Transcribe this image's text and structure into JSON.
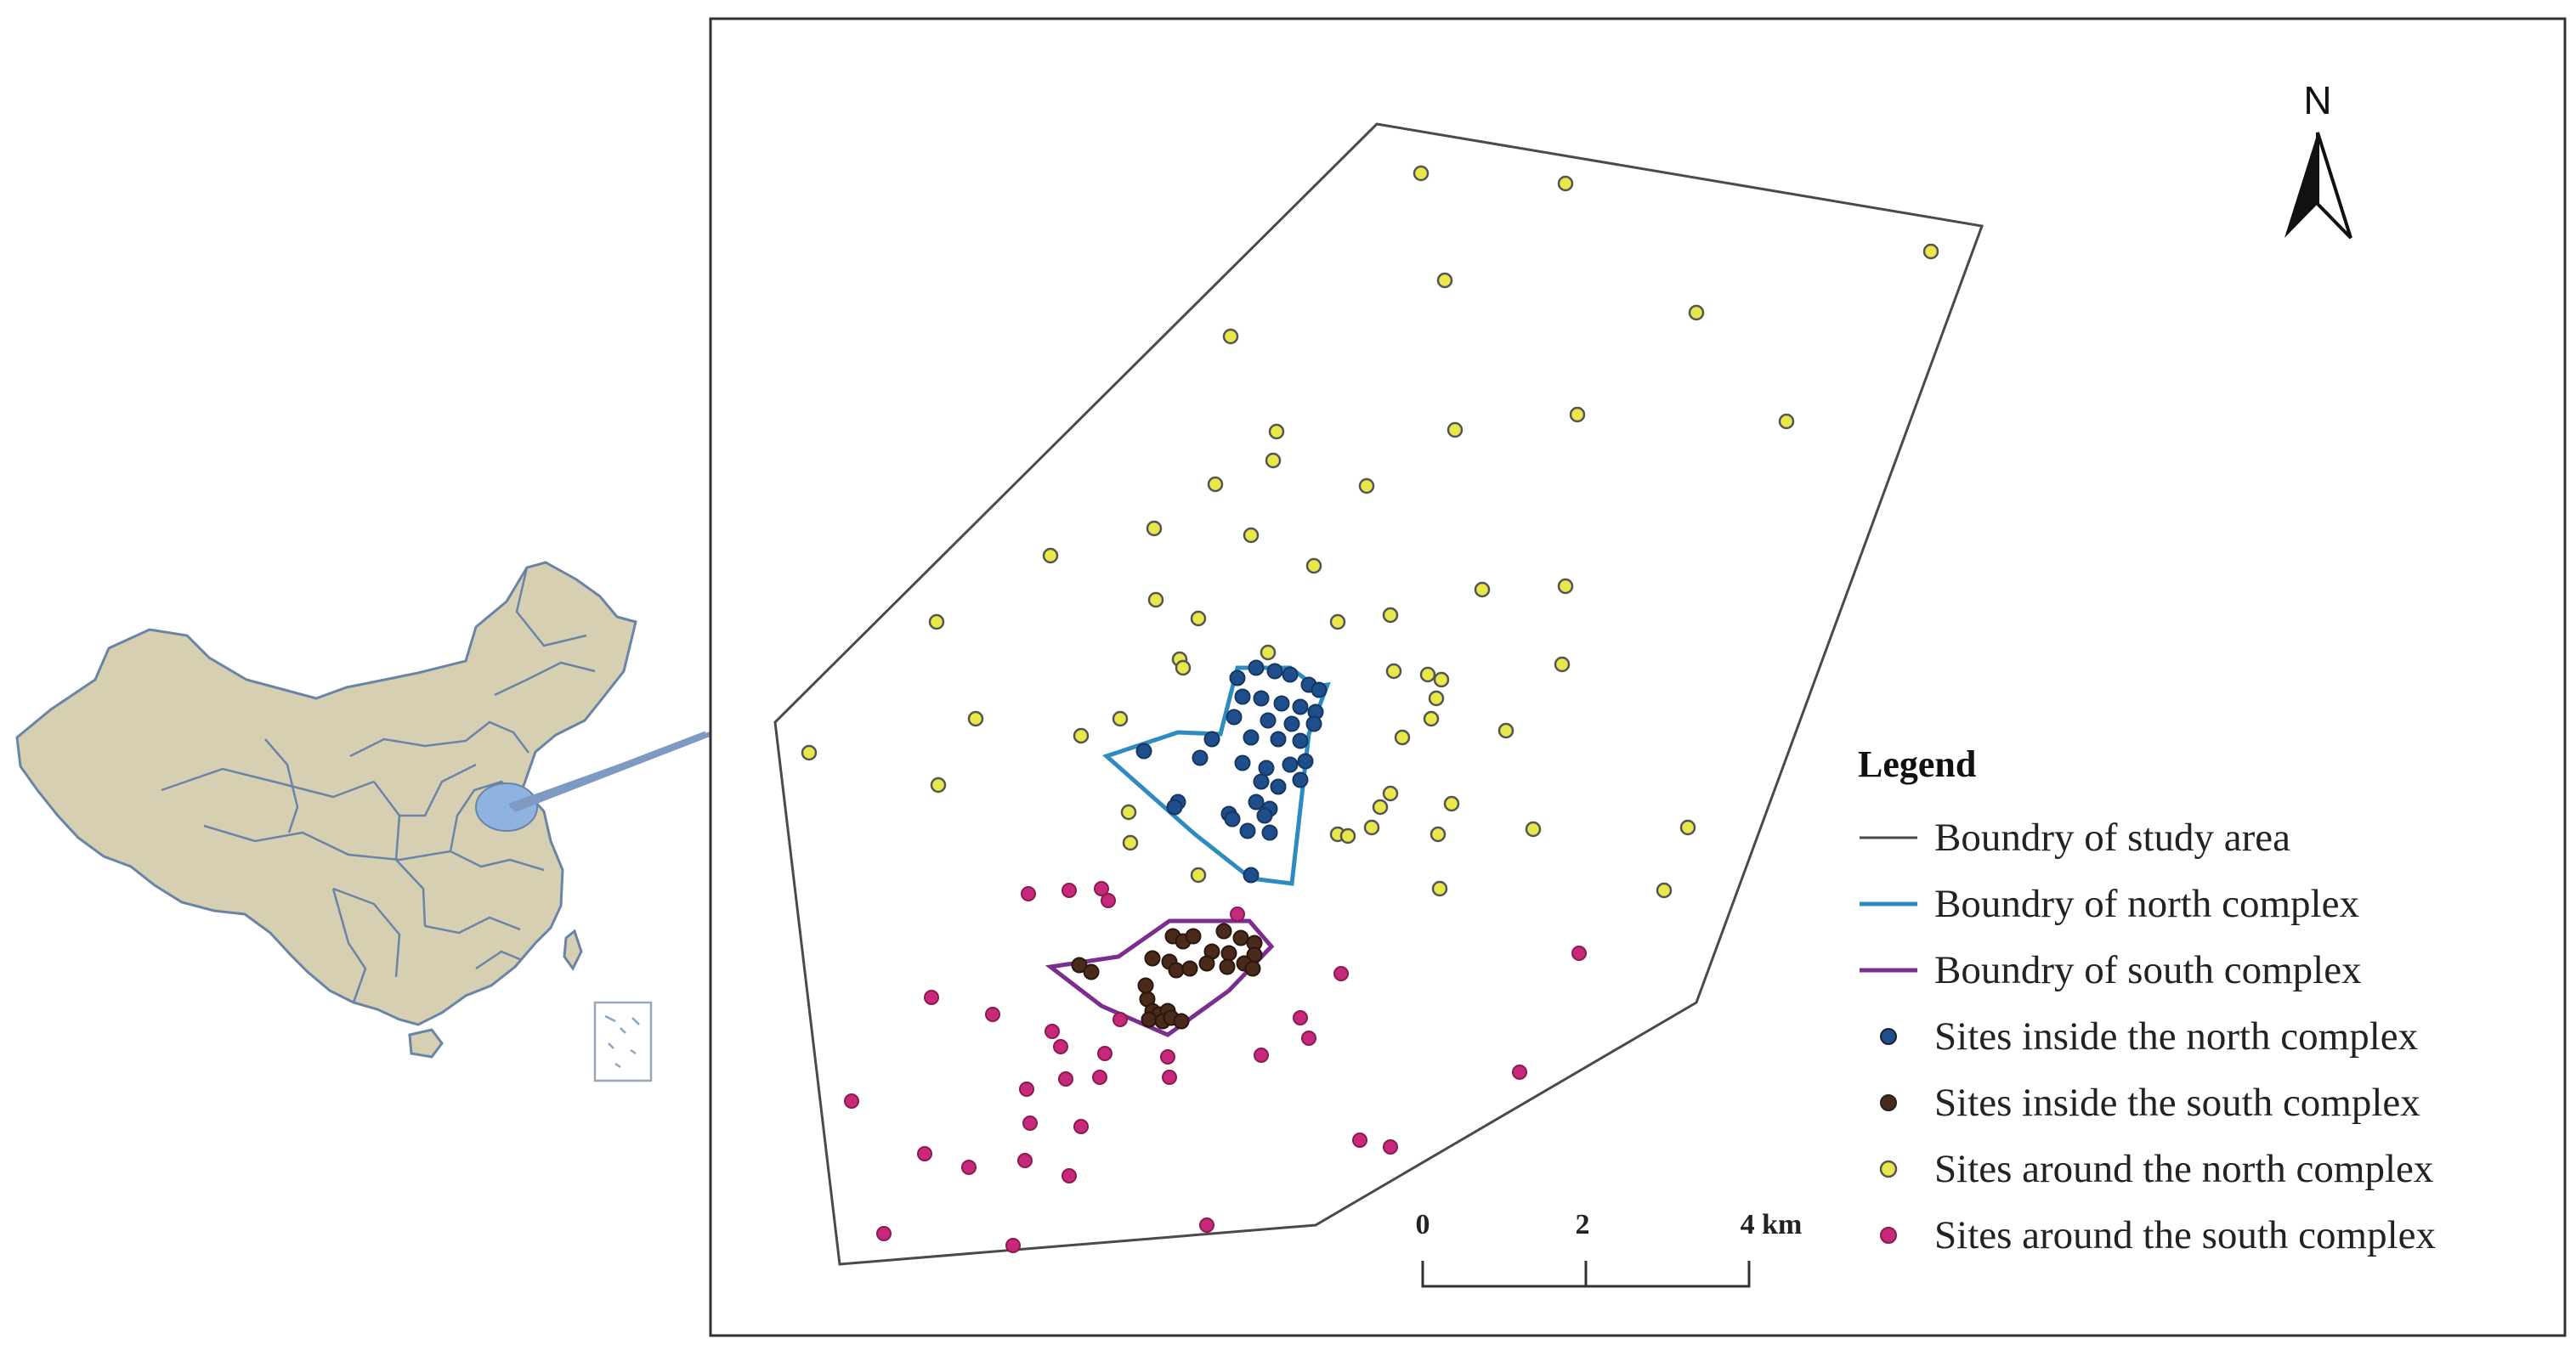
{
  "north_arrow": {
    "label": "N"
  },
  "legend": {
    "title": "Legend",
    "items": [
      {
        "label": "Boundry of study area",
        "symbol": "line",
        "color": "#4a4a4a"
      },
      {
        "label": "Boundry of north complex",
        "symbol": "line",
        "color": "#2e8bc0"
      },
      {
        "label": "Boundry of south complex",
        "symbol": "line",
        "color": "#7a2e8e"
      },
      {
        "label": "Sites inside the north complex",
        "symbol": "dot",
        "color": "#1f4e8c"
      },
      {
        "label": "Sites inside the south complex",
        "symbol": "dot",
        "color": "#4a2a1a"
      },
      {
        "label": "Sites around the north complex",
        "symbol": "dot",
        "color": "#e8e84a"
      },
      {
        "label": "Sites around the south complex",
        "symbol": "dot",
        "color": "#c8287a"
      }
    ]
  },
  "scale_bar": {
    "labels": [
      "0",
      "2",
      "4 km"
    ]
  },
  "colors": {
    "china_land": "#d6cfb2",
    "china_border": "#6a84a8",
    "highlight_province": "#8eb3e0",
    "study_boundary": "#4a4a4a",
    "north_boundary": "#2e8bc0",
    "south_boundary": "#7a2e8e",
    "north_inside": "#1f4e8c",
    "south_inside": "#4a2a1a",
    "north_around": "#e8e84a",
    "south_around": "#c8287a"
  }
}
